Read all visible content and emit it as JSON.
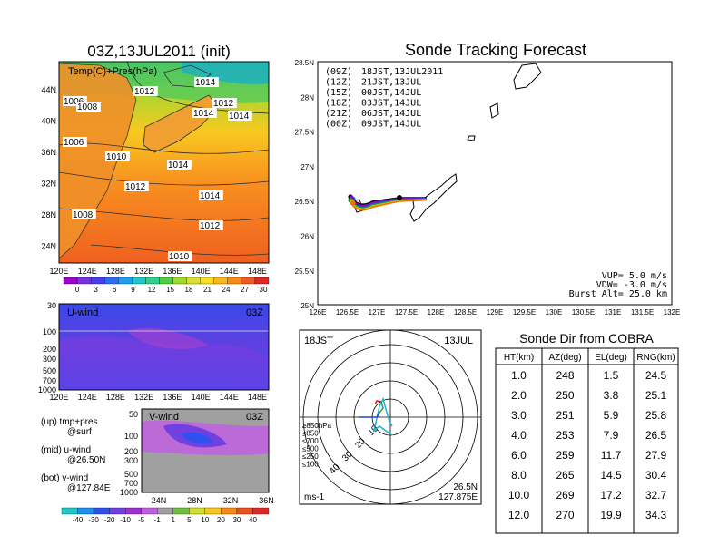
{
  "colors": {
    "scale1": [
      "#9a00c8",
      "#7a2fe0",
      "#4b3cf0",
      "#2f6df0",
      "#1f9ff0",
      "#20c8c8",
      "#30d08a",
      "#50d040",
      "#a0d830",
      "#d8e030",
      "#f8e020",
      "#f8b818",
      "#f88a18",
      "#f05a1e",
      "#e02828"
    ],
    "scale2": [
      "#20c8c8",
      "#2090f0",
      "#3050f0",
      "#7040e0",
      "#a030d0",
      "#c060e0",
      "#a0a0a0",
      "#70c040",
      "#d0e030",
      "#f8c820",
      "#f88a18",
      "#f05020",
      "#e02828"
    ],
    "contour": "#303030"
  },
  "panel_a": {
    "title": "03Z,13JUL2011 (init)",
    "label": "Temp(C)+Pres(hPa)",
    "xticks": [
      "120E",
      "124E",
      "128E",
      "132E",
      "136E",
      "140E",
      "144E",
      "148E"
    ],
    "yticks": [
      "44N",
      "40N",
      "36N",
      "32N",
      "28N",
      "24N"
    ],
    "isobars": [
      "1006",
      "1008",
      "1012",
      "1014",
      "1012",
      "1014",
      "1014",
      "1006",
      "1010",
      "1014",
      "1012",
      "1014",
      "1008",
      "1012",
      "1010"
    ],
    "colorbar": [
      "0",
      "3",
      "6",
      "9",
      "12",
      "15",
      "18",
      "21",
      "24",
      "27",
      "30"
    ]
  },
  "panel_u": {
    "label": "U-wind",
    "time": "03Z",
    "yticks": [
      "30",
      "100",
      "200",
      "300",
      "500",
      "700",
      "1000"
    ],
    "xticks": [
      "120E",
      "124E",
      "128E",
      "132E",
      "136E",
      "140E",
      "144E",
      "148E"
    ]
  },
  "panel_v": {
    "label": "V-wind",
    "time": "03Z",
    "yticks": [
      "50",
      "100",
      "200",
      "300",
      "500",
      "700",
      "1000"
    ],
    "xticks": [
      "24N",
      "28N",
      "32N",
      "36N"
    ]
  },
  "legend_lines": [
    "(up) tmp+pres",
    "@surf",
    "(mid) u-wind",
    "@26.50N",
    "(bot) v-wind",
    "@127.84E"
  ],
  "colorbar2": [
    "-40",
    "-30",
    "-20",
    "-10",
    "-5",
    "-1",
    "1",
    "5",
    "10",
    "20",
    "30",
    "40"
  ],
  "tracking": {
    "title": "Sonde Tracking Forecast",
    "yticks": [
      "28.5N",
      "28N",
      "27.5N",
      "27N",
      "26.5N",
      "26N",
      "25.5N",
      "25N"
    ],
    "xticks": [
      "126E",
      "126.5E",
      "127E",
      "127.5E",
      "128E",
      "128.5E",
      "129E",
      "129.5E",
      "130E",
      "130.5E",
      "131E",
      "131.5E",
      "132E"
    ],
    "legend": [
      {
        "z": "(09Z)",
        "t": "18JST,13JUL2011",
        "color": "#000000"
      },
      {
        "z": "(12Z)",
        "t": "21JST,13JUL",
        "color": "#9a00c8"
      },
      {
        "z": "(15Z)",
        "t": "00JST,14JUL",
        "color": "#2040e0"
      },
      {
        "z": "(18Z)",
        "t": "03JST,14JUL",
        "color": "#10a040"
      },
      {
        "z": "(21Z)",
        "t": "06JST,14JUL",
        "color": "#e8b800"
      },
      {
        "z": "(00Z)",
        "t": "09JST,14JUL",
        "color": "#f07000"
      }
    ],
    "params": [
      "VUP= 5.0 m/s",
      "VDW= -3.0 m/s",
      "Burst Alt= 25.0 km"
    ]
  },
  "polar": {
    "time": "18JST",
    "date": "13JUL",
    "range_labels": [
      "10",
      "20",
      "30",
      "40"
    ],
    "levels": [
      {
        "label": "≥850hPa",
        "color": "#e02020"
      },
      {
        "label": "≤850",
        "color": "#f08000"
      },
      {
        "label": "≤700",
        "color": "#d0c000"
      },
      {
        "label": "≤500",
        "color": "#20a040"
      },
      {
        "label": "≤250",
        "color": "#20b0d0"
      },
      {
        "label": "≤100",
        "color": "#2040e0"
      }
    ],
    "unit": "ms-1",
    "lat": "26.5N",
    "lon": "127.875E"
  },
  "cobra": {
    "title": "Sonde Dir from COBRA",
    "headers": [
      "HT(km)",
      "AZ(deg)",
      "EL(deg)",
      "RNG(km)"
    ],
    "rows": [
      [
        "1.0",
        "248",
        "1.5",
        "24.5"
      ],
      [
        "2.0",
        "250",
        "3.8",
        "25.1"
      ],
      [
        "3.0",
        "251",
        "5.9",
        "25.8"
      ],
      [
        "4.0",
        "253",
        "7.9",
        "26.5"
      ],
      [
        "6.0",
        "259",
        "11.7",
        "27.9"
      ],
      [
        "8.0",
        "265",
        "14.5",
        "30.4"
      ],
      [
        "10.0",
        "269",
        "17.2",
        "32.7"
      ],
      [
        "12.0",
        "270",
        "19.9",
        "34.3"
      ]
    ]
  },
  "chart_data": {
    "type": "table",
    "title": "Sonde Dir from COBRA",
    "columns": [
      "HT(km)",
      "AZ(deg)",
      "EL(deg)",
      "RNG(km)"
    ],
    "rows": [
      [
        1.0,
        248,
        1.5,
        24.5
      ],
      [
        2.0,
        250,
        3.8,
        25.1
      ],
      [
        3.0,
        251,
        5.9,
        25.8
      ],
      [
        4.0,
        253,
        7.9,
        26.5
      ],
      [
        6.0,
        259,
        11.7,
        27.9
      ],
      [
        8.0,
        265,
        14.5,
        30.4
      ],
      [
        10.0,
        269,
        17.2,
        32.7
      ],
      [
        12.0,
        270,
        19.9,
        34.3
      ]
    ]
  }
}
